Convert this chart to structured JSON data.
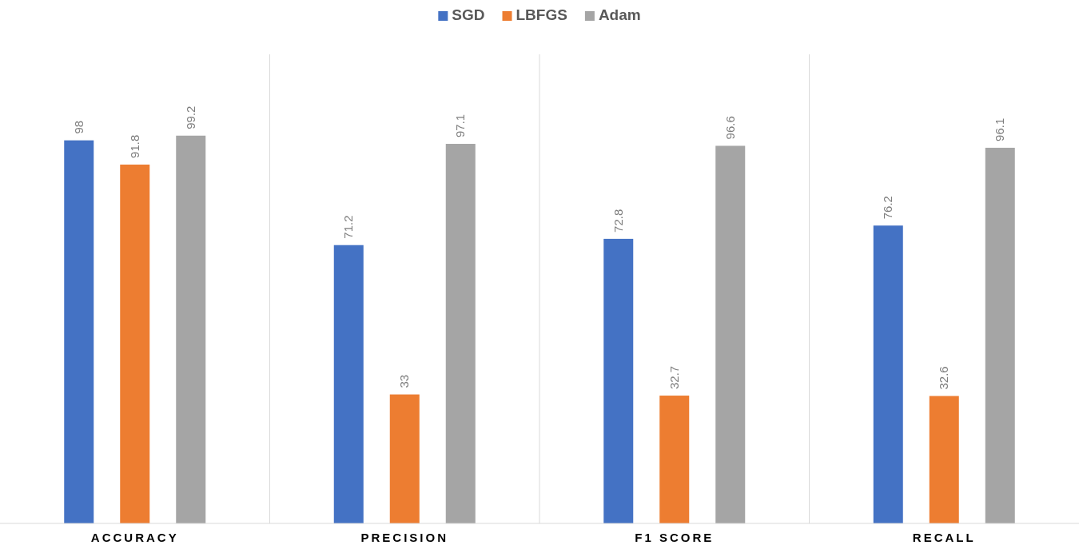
{
  "chart_data": {
    "type": "bar",
    "categories": [
      "ACCURACY",
      "PRECISION",
      "F1 SCORE",
      "RECALL"
    ],
    "series": [
      {
        "name": "SGD",
        "color": "#4472c4",
        "values": [
          98,
          71.2,
          72.8,
          76.2
        ]
      },
      {
        "name": "LBFGS",
        "color": "#ed7d31",
        "values": [
          91.8,
          33,
          32.7,
          32.6
        ]
      },
      {
        "name": "Adam",
        "color": "#a5a5a5",
        "values": [
          99.2,
          97.1,
          96.6,
          96.1
        ]
      }
    ],
    "ylim": [
      0,
      120
    ],
    "tick_labels": "x",
    "data_labels": true,
    "grid": "x",
    "legend": "top"
  }
}
